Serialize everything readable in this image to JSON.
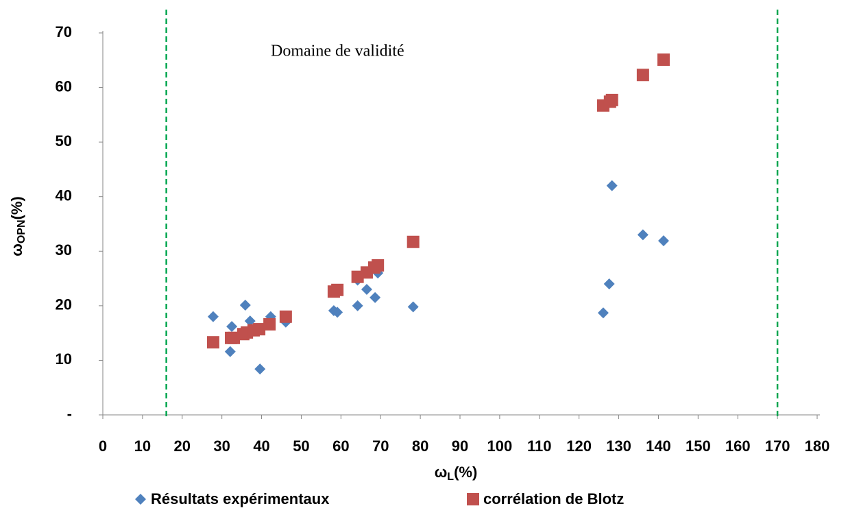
{
  "chart_data": {
    "type": "scatter",
    "annotation": "Domaine de validité",
    "xlabel": {
      "symbol": "ω",
      "subscript": "L",
      "unit": "(%)"
    },
    "ylabel": {
      "symbol": "ω",
      "subscript": "OPN",
      "unit": "(%)"
    },
    "xlim": [
      0,
      180
    ],
    "ylim": [
      0,
      70
    ],
    "xticks": [
      0,
      10,
      20,
      30,
      40,
      50,
      60,
      70,
      80,
      90,
      100,
      110,
      120,
      130,
      140,
      150,
      160,
      170,
      180
    ],
    "yticks": [
      {
        "value": 0,
        "label": "-"
      },
      10,
      20,
      30,
      40,
      50,
      60,
      70
    ],
    "validity_bounds": [
      16,
      170
    ],
    "validity_color": "#00a650",
    "legend": "bottom",
    "series": [
      {
        "name": "Résultats expérimentaux",
        "color": "#4f81bd",
        "marker": "diamond",
        "x": [
          27.8,
          32.5,
          32.1,
          35.9,
          37.1,
          39.6,
          42.3,
          46.1,
          58.2,
          59.1,
          64.2,
          64.2,
          66.5,
          68.6,
          69.3,
          78.2,
          126.1,
          128.3,
          127.6,
          136.1,
          141.3
        ],
        "values": [
          18.0,
          16.2,
          11.6,
          20.1,
          17.2,
          8.4,
          18.0,
          17.0,
          19.1,
          18.8,
          20.0,
          24.7,
          23.0,
          21.5,
          26.0,
          19.8,
          18.7,
          42.0,
          24.0,
          33.0,
          31.9
        ]
      },
      {
        "name": "corrélation de Blotz",
        "color": "#c0504d",
        "marker": "square",
        "x": [
          27.8,
          32.3,
          33.0,
          35.4,
          36.3,
          38.0,
          39.4,
          42.0,
          46.1,
          58.2,
          59.1,
          64.2,
          66.5,
          68.4,
          69.3,
          78.2,
          126.1,
          127.8,
          128.3,
          136.1,
          141.3
        ],
        "values": [
          13.3,
          14.1,
          14.1,
          14.8,
          15.1,
          15.5,
          15.7,
          16.6,
          18.0,
          22.6,
          22.9,
          25.3,
          26.1,
          27.0,
          27.4,
          31.7,
          56.7,
          57.4,
          57.7,
          62.3,
          65.1
        ]
      }
    ]
  }
}
